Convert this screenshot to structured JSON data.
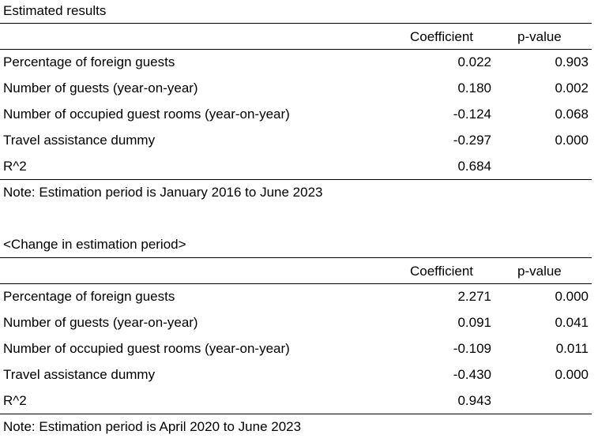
{
  "table1": {
    "title": "Estimated results",
    "col_coef": "Coefficient",
    "col_p": "p-value",
    "rows": [
      {
        "label": "Percentage of foreign guests",
        "coef": "0.022",
        "p": "0.903"
      },
      {
        "label": "Number of guests (year-on-year)",
        "coef": "0.180",
        "p": "0.002"
      },
      {
        "label": "Number of occupied guest rooms (year-on-year)",
        "coef": "-0.124",
        "p": "0.068"
      },
      {
        "label": "Travel assistance dummy",
        "coef": "-0.297",
        "p": "0.000"
      },
      {
        "label": "R^2",
        "coef": "0.684",
        "p": ""
      }
    ],
    "note": "Note: Estimation period is January 2016 to June 2023"
  },
  "table2": {
    "title": "<Change in estimation period>",
    "col_coef": "Coefficient",
    "col_p": "p-value",
    "rows": [
      {
        "label": "Percentage of foreign guests",
        "coef": "2.271",
        "p": "0.000"
      },
      {
        "label": "Number of guests (year-on-year)",
        "coef": "0.091",
        "p": "0.041"
      },
      {
        "label": "Number of occupied guest rooms (year-on-year)",
        "coef": "-0.109",
        "p": "0.011"
      },
      {
        "label": "Travel assistance dummy",
        "coef": "-0.430",
        "p": "0.000"
      },
      {
        "label": "R^2",
        "coef": "0.943",
        "p": ""
      }
    ],
    "note": "Note: Estimation period is April 2020 to June 2023"
  }
}
